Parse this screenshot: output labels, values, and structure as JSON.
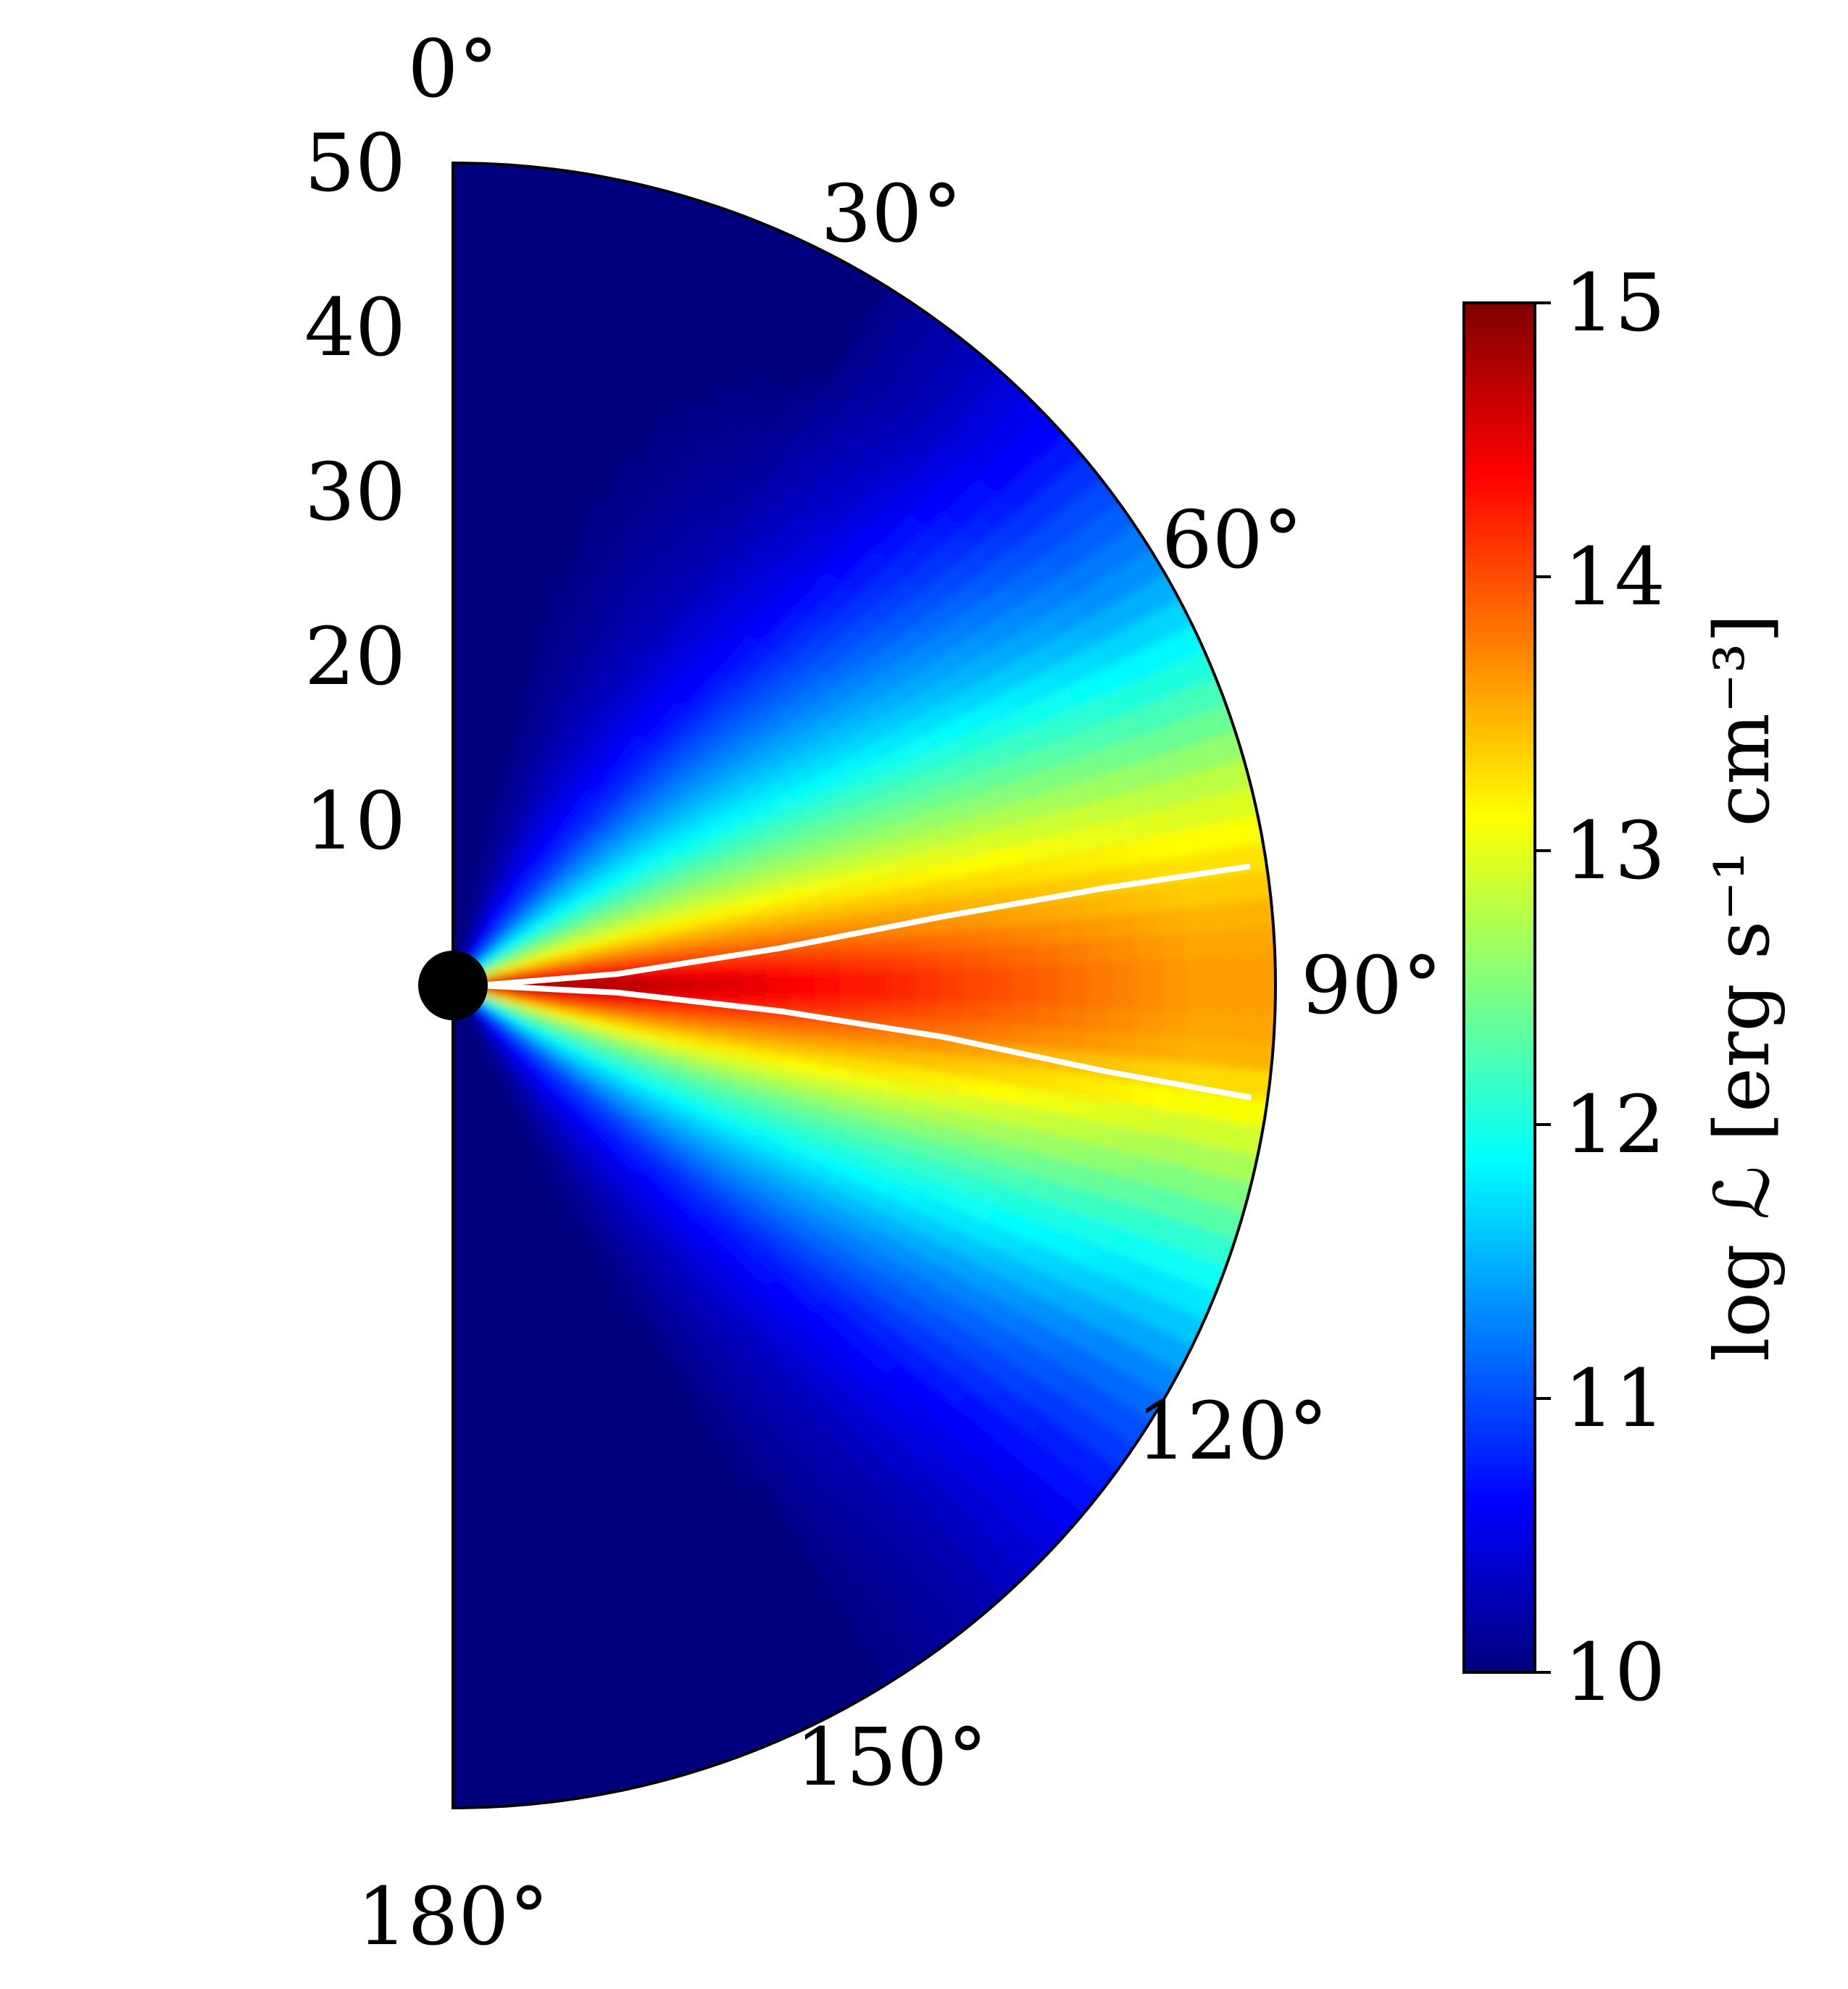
{
  "chart_data": {
    "type": "heatmap",
    "projection": "polar-half-disk",
    "value_name": "log L",
    "colorbar": {
      "label": "log ℒ [erg s⁻¹ cm⁻³]",
      "vmin": 10,
      "vmax": 15,
      "ticks": [
        "10",
        "11",
        "12",
        "13",
        "14",
        "15"
      ],
      "colormap": "jet",
      "colors": [
        "#00007f",
        "#0000ff",
        "#007fff",
        "#00ffff",
        "#7fff7f",
        "#ffff00",
        "#ff7f00",
        "#ff0000",
        "#7f0000"
      ]
    },
    "radial_axis": {
      "ticks": [
        "10",
        "20",
        "30",
        "40",
        "50"
      ],
      "range": [
        0,
        50
      ]
    },
    "angular_axis": {
      "ticks": [
        "0°",
        "30°",
        "60°",
        "90°",
        "120°",
        "150°",
        "180°"
      ],
      "range_deg": [
        0,
        180
      ]
    },
    "profile": {
      "theta_deg": [
        0,
        10,
        20,
        30,
        40,
        50,
        60,
        70,
        75,
        80,
        85,
        88,
        90,
        92,
        95,
        100,
        105,
        110,
        120,
        130,
        140,
        150,
        160,
        170,
        180
      ],
      "log_L_at_r5": [
        10.0,
        10.0,
        10.2,
        10.6,
        11.0,
        11.6,
        12.2,
        12.9,
        13.3,
        13.8,
        14.4,
        14.8,
        15.0,
        14.8,
        14.4,
        13.8,
        13.2,
        12.6,
        11.8,
        11.0,
        10.5,
        10.1,
        10.0,
        10.0,
        10.0
      ],
      "log_L_at_r45": [
        10.0,
        10.0,
        10.0,
        10.0,
        10.3,
        10.8,
        11.4,
        12.3,
        12.8,
        13.2,
        13.5,
        13.6,
        13.6,
        13.6,
        13.5,
        13.0,
        12.5,
        12.0,
        11.2,
        10.6,
        10.2,
        10.0,
        10.0,
        10.0,
        10.0
      ]
    },
    "contour": {
      "color": "#ffffff",
      "upper": {
        "r": [
          2,
          10,
          20,
          30,
          40,
          49
        ],
        "theta_deg": [
          89.0,
          86.0,
          83.5,
          82.0,
          81.5,
          81.5
        ]
      },
      "lower": {
        "r": [
          2,
          10,
          20,
          30,
          40,
          49
        ],
        "theta_deg": [
          90.5,
          92.5,
          94.5,
          96.0,
          97.5,
          98.0
        ]
      }
    },
    "central_object": {
      "color": "#000000"
    }
  }
}
